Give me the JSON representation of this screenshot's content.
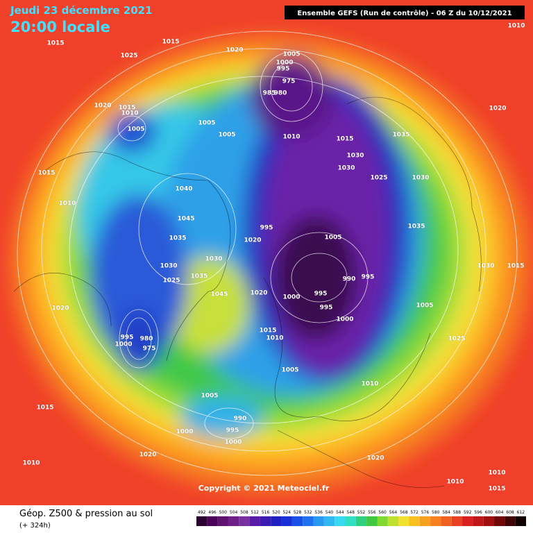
{
  "header": {
    "date": "Jeudi 23 décembre 2021",
    "local_time": "20:00 locale",
    "run_info": "Ensemble GEFS  (Run de contrôle)  -  06 Z du 10/12/2021"
  },
  "copyright": "Copyright © 2021 Meteociel.fr",
  "legend": {
    "title": "Géop. Z500 & pression au sol",
    "subtitle": "(+ 324h)",
    "scale": [
      492,
      496,
      500,
      504,
      508,
      512,
      516,
      520,
      524,
      528,
      532,
      536,
      540,
      544,
      548,
      552,
      556,
      560,
      564,
      568,
      572,
      576,
      580,
      584,
      588,
      592,
      596,
      600,
      604,
      608,
      612
    ]
  },
  "isobar_labels": [
    1015,
    1015,
    1020,
    1025,
    1005,
    1000,
    995,
    975,
    985,
    980,
    1020,
    1015,
    1010,
    1005,
    1005,
    1005,
    1010,
    1015,
    1035,
    1030,
    1030,
    1025,
    1030,
    1015,
    1010,
    1040,
    1045,
    1035,
    1030,
    1030,
    1025,
    1035,
    1045,
    1020,
    995,
    1005,
    1035,
    990,
    995,
    995,
    1000,
    995,
    1000,
    1020,
    1015,
    1010,
    1005,
    1020,
    995,
    1000,
    980,
    975,
    1005,
    1030,
    1015,
    1025,
    1010,
    1005,
    990,
    995,
    1000,
    1000,
    1015,
    1020,
    1020,
    1010,
    1010,
    1015,
    1010,
    1010,
    1020
  ]
}
